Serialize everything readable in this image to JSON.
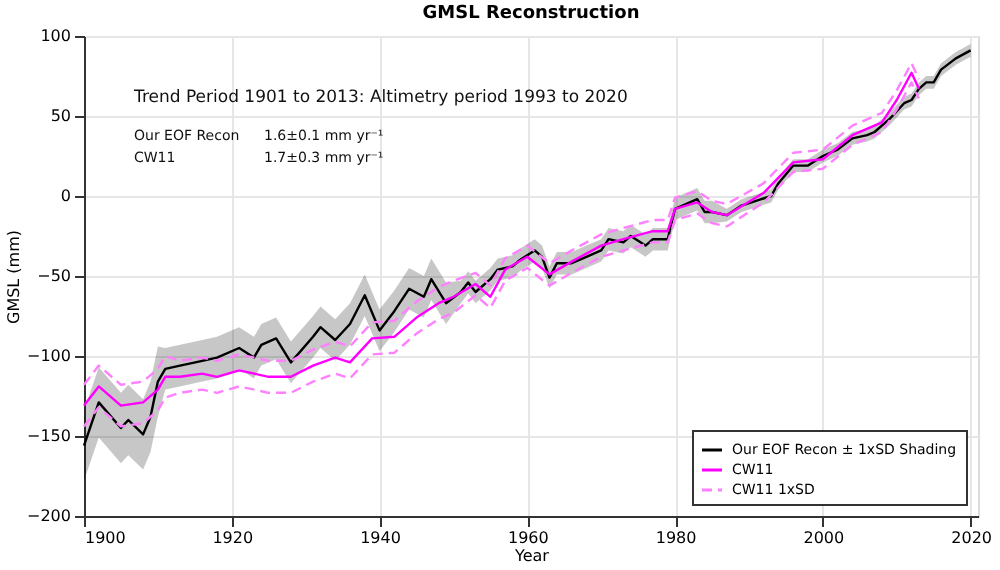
{
  "chart_data": {
    "type": "line",
    "title": "GMSL Reconstruction",
    "xlabel": "Year",
    "ylabel": "GMSL (mm)",
    "xlim": [
      1900,
      2021
    ],
    "xticks": [
      1900,
      1920,
      1940,
      1960,
      1980,
      2000,
      2020
    ],
    "ylim": [
      -200,
      100
    ],
    "yticks": [
      -200,
      -150,
      -100,
      -50,
      0,
      50,
      100
    ],
    "grid": true,
    "legend": "bottom right",
    "marker": "none",
    "annotations": [
      "Trend Period 1901 to 2013: Altimetry period 1993 to 2020",
      "Our EOF Recon",
      "1.6±0.1 mm yr⁻¹",
      "CW11",
      "1.7±0.3 mm yr⁻¹"
    ],
    "series": [
      {
        "name": "Our EOF Recon ± 1xSD Shading",
        "color": "#000000",
        "line_style": "solid",
        "x": [
          1900,
          1902,
          1905,
          1906,
          1908,
          1909,
          1910,
          1911,
          1913,
          1916,
          1918,
          1921,
          1923,
          1924,
          1926,
          1928,
          1931,
          1932,
          1934,
          1936,
          1938,
          1940,
          1942,
          1944,
          1946,
          1947,
          1949,
          1951,
          1952,
          1953,
          1955,
          1956,
          1958,
          1959,
          1961,
          1962,
          1963,
          1964,
          1966,
          1968,
          1970,
          1971,
          1973,
          1974,
          1976,
          1977,
          1979,
          1980,
          1982,
          1983,
          1984,
          1985,
          1987,
          1989,
          1993,
          1994,
          1996,
          1998,
          2000,
          2002,
          2004,
          2006,
          2007,
          2009,
          2011,
          2012,
          2013,
          2014,
          2015,
          2016,
          2018,
          2020
        ],
        "values": [
          -156,
          -129,
          -145,
          -140,
          -149,
          -138,
          -116,
          -108,
          -106,
          -103,
          -101,
          -95,
          -101,
          -93,
          -89,
          -104,
          -88,
          -82,
          -90,
          -80,
          -62,
          -84,
          -72,
          -58,
          -63,
          -52,
          -67,
          -60,
          -54,
          -60,
          -52,
          -46,
          -44,
          -40,
          -34,
          -38,
          -51,
          -42,
          -42,
          -38,
          -34,
          -27,
          -29,
          -25,
          -31,
          -27,
          -27,
          -8,
          -4,
          -2,
          -10,
          -10,
          -12,
          -6,
          0,
          8,
          19,
          19,
          25,
          29,
          36,
          38,
          40,
          48,
          58,
          60,
          67,
          71,
          71,
          79,
          86,
          91
        ],
        "lower": [
          -178,
          -151,
          -167,
          -162,
          -171,
          -160,
          -138,
          -121,
          -119,
          -116,
          -114,
          -108,
          -114,
          -106,
          -102,
          -117,
          -101,
          -95,
          -103,
          -93,
          -75,
          -97,
          -85,
          -71,
          -76,
          -65,
          -80,
          -67,
          -61,
          -67,
          -59,
          -53,
          -51,
          -47,
          -41,
          -45,
          -58,
          -49,
          -49,
          -45,
          -41,
          -34,
          -36,
          -32,
          -38,
          -34,
          -34,
          -15,
          -11,
          -9,
          -17,
          -17,
          -16,
          -10,
          -4,
          4,
          15,
          15,
          21,
          25,
          32,
          34,
          36,
          44,
          54,
          56,
          63,
          67,
          67,
          75,
          82,
          87
        ],
        "upper": [
          -134,
          -107,
          -123,
          -118,
          -127,
          -116,
          -94,
          -95,
          -93,
          -90,
          -88,
          -82,
          -88,
          -80,
          -76,
          -91,
          -75,
          -69,
          -77,
          -67,
          -49,
          -71,
          -59,
          -45,
          -50,
          -39,
          -54,
          -53,
          -47,
          -53,
          -45,
          -39,
          -37,
          -33,
          -27,
          -31,
          -44,
          -35,
          -35,
          -31,
          -27,
          -20,
          -22,
          -18,
          -24,
          -20,
          -20,
          -1,
          3,
          5,
          -3,
          -3,
          -8,
          -2,
          4,
          12,
          23,
          23,
          29,
          33,
          40,
          42,
          44,
          52,
          62,
          64,
          71,
          75,
          75,
          83,
          90,
          95
        ]
      },
      {
        "name": "CW11",
        "color": "#ff00ff",
        "line_style": "solid",
        "x": [
          1900,
          1902,
          1905,
          1908,
          1910,
          1911,
          1913,
          1916,
          1918,
          1921,
          1925,
          1928,
          1931,
          1934,
          1936,
          1939,
          1942,
          1945,
          1948,
          1950,
          1953,
          1955,
          1957,
          1960,
          1963,
          1966,
          1970,
          1973,
          1977,
          1979,
          1980,
          1983,
          1985,
          1987,
          1992,
          1996,
          2000,
          2004,
          2008,
          2010,
          2012,
          2013
        ],
        "values": [
          -131,
          -119,
          -131,
          -129,
          -121,
          -113,
          -113,
          -111,
          -113,
          -109,
          -113,
          -113,
          -106,
          -101,
          -104,
          -89,
          -88,
          -76,
          -67,
          -63,
          -55,
          -63,
          -46,
          -38,
          -49,
          -41,
          -31,
          -27,
          -22,
          -22,
          -8,
          -4,
          -10,
          -12,
          2,
          21,
          23,
          38,
          46,
          60,
          77,
          67
        ]
      },
      {
        "name": "CW11 1xSD",
        "color": "#ff80ff",
        "line_style": "dashed",
        "x": [
          1900,
          1902,
          1905,
          1908,
          1910,
          1911,
          1913,
          1916,
          1918,
          1921,
          1925,
          1928,
          1931,
          1934,
          1936,
          1939,
          1942,
          1945,
          1948,
          1950,
          1953,
          1955,
          1957,
          1960,
          1963,
          1966,
          1970,
          1973,
          1977,
          1979,
          1980,
          1983,
          1985,
          1987,
          1992,
          1996,
          2000,
          2004,
          2008,
          2010,
          2012,
          2013
        ],
        "values": [
          -118,
          -106,
          -118,
          -116,
          -108,
          -100,
          -103,
          -101,
          -103,
          -99,
          -103,
          -103,
          -96,
          -91,
          -94,
          -79,
          -78,
          -66,
          -57,
          -53,
          -48,
          -56,
          -39,
          -31,
          -42,
          -34,
          -24,
          -20,
          -15,
          -15,
          -1,
          3,
          -3,
          -5,
          8,
          27,
          29,
          44,
          52,
          66,
          83,
          73
        ]
      },
      {
        "color": "#ff80ff",
        "line_style": "dashed",
        "x": [
          1900,
          1902,
          1905,
          1908,
          1910,
          1911,
          1913,
          1916,
          1918,
          1921,
          1925,
          1928,
          1931,
          1934,
          1936,
          1939,
          1942,
          1945,
          1948,
          1950,
          1953,
          1955,
          1957,
          1960,
          1963,
          1966,
          1970,
          1973,
          1977,
          1979,
          1980,
          1983,
          1985,
          1987,
          1992,
          1996,
          2000,
          2004,
          2008,
          2010,
          2012,
          2013
        ],
        "values": [
          -144,
          -132,
          -144,
          -142,
          -134,
          -126,
          -123,
          -121,
          -123,
          -119,
          -123,
          -123,
          -116,
          -111,
          -114,
          -99,
          -98,
          -86,
          -77,
          -73,
          -62,
          -70,
          -53,
          -45,
          -56,
          -48,
          -38,
          -34,
          -29,
          -29,
          -15,
          -11,
          -17,
          -19,
          -4,
          15,
          17,
          32,
          40,
          54,
          71,
          61
        ]
      }
    ]
  }
}
